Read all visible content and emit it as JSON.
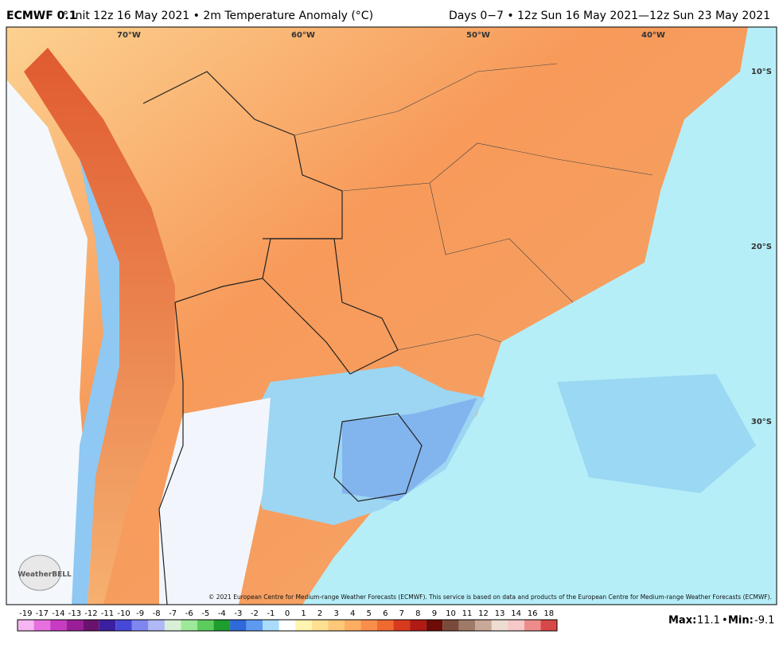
{
  "header": {
    "model": "ECMWF 0.1",
    "title_rest": "° Init 12z 16 May 2021 • 2m Temperature Anomaly (°C)",
    "period": "Days 0−7 • 12z Sun 16 May 2021—12z Sun 23 May 2021"
  },
  "map": {
    "longitudes": [
      "70°W",
      "60°W",
      "50°W",
      "40°W"
    ],
    "latitudes": [
      "10°S",
      "20°S",
      "30°S"
    ],
    "copyright": "© 2021 European Centre for Medium-range Weather Forecasts (ECMWF). This service is based on data and products of the European Centre for Medium-range Weather Forecasts (ECMWF).",
    "logo": "WeatherBELL"
  },
  "colorbar": [
    {
      "label": "-19",
      "color": "#f6b6f2"
    },
    {
      "label": "-17",
      "color": "#e670e0"
    },
    {
      "label": "-14",
      "color": "#c83cc4"
    },
    {
      "label": "-13",
      "color": "#9a1e98"
    },
    {
      "label": "-12",
      "color": "#6a1270"
    },
    {
      "label": "-11",
      "color": "#3a1fa0"
    },
    {
      "label": "-10",
      "color": "#4848d8"
    },
    {
      "label": "-9",
      "color": "#7f86ee"
    },
    {
      "label": "-8",
      "color": "#b0b8f6"
    },
    {
      "label": "-7",
      "color": "#d8f0d8"
    },
    {
      "label": "-6",
      "color": "#9ee89a"
    },
    {
      "label": "-5",
      "color": "#5ccc5c"
    },
    {
      "label": "-4",
      "color": "#1e9e2e"
    },
    {
      "label": "-3",
      "color": "#2e6ad8"
    },
    {
      "label": "-2",
      "color": "#5e9af0"
    },
    {
      "label": "-1",
      "color": "#a8dcfa"
    },
    {
      "label": "0",
      "color": "#ffffff"
    },
    {
      "label": "1",
      "color": "#fff4b0"
    },
    {
      "label": "2",
      "color": "#fee090"
    },
    {
      "label": "3",
      "color": "#fdc878"
    },
    {
      "label": "4",
      "color": "#fdae61"
    },
    {
      "label": "5",
      "color": "#f98e4a"
    },
    {
      "label": "6",
      "color": "#f06a30"
    },
    {
      "label": "7",
      "color": "#d83a1e"
    },
    {
      "label": "8",
      "color": "#b01a12"
    },
    {
      "label": "9",
      "color": "#6e0c08"
    },
    {
      "label": "10",
      "color": "#7a4a3a"
    },
    {
      "label": "11",
      "color": "#a07a68"
    },
    {
      "label": "12",
      "color": "#c8a898"
    },
    {
      "label": "13",
      "color": "#eedcd0"
    },
    {
      "label": "14",
      "color": "#f6c8c8"
    },
    {
      "label": "16",
      "color": "#ee8c8c"
    },
    {
      "label": "18",
      "color": "#d84848"
    }
  ],
  "stats": {
    "max_label": "Max:",
    "max": "11.1",
    "sep": "•",
    "min_label": "Min:",
    "min": "-9.1"
  }
}
